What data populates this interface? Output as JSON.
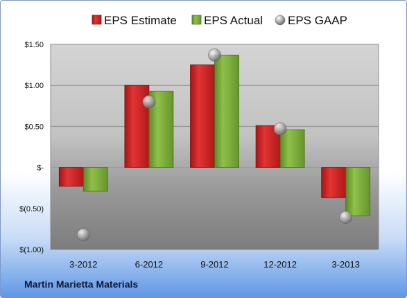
{
  "company": "Martin Marietta Materials",
  "legend": {
    "estimate_label": "EPS Estimate",
    "actual_label": "EPS Actual",
    "gaap_label": "EPS GAAP"
  },
  "colors": {
    "estimate": "#d42a2a",
    "actual": "#7fae3c",
    "gaap": "#a6a6a6"
  },
  "chart_data": {
    "type": "bar",
    "categories": [
      "3-2012",
      "6-2012",
      "9-2012",
      "12-2012",
      "3-2013"
    ],
    "series": [
      {
        "name": "EPS Estimate",
        "values": [
          -0.23,
          1.0,
          1.25,
          0.51,
          -0.37
        ]
      },
      {
        "name": "EPS Actual",
        "values": [
          -0.29,
          0.93,
          1.37,
          0.46,
          -0.59
        ]
      },
      {
        "name": "EPS GAAP",
        "type": "scatter",
        "values": [
          -0.82,
          0.8,
          1.37,
          0.47,
          -0.61
        ]
      }
    ],
    "ylim": [
      -1.0,
      1.5
    ],
    "yticks": [
      1.5,
      1.0,
      0.5,
      0,
      -0.5,
      -1.0
    ],
    "ytick_labels": [
      "$1.50",
      "$1.00",
      "$0.50",
      "$-",
      "$(0.50)",
      "$(1.00)"
    ],
    "grid": true,
    "legend_position": "top"
  }
}
